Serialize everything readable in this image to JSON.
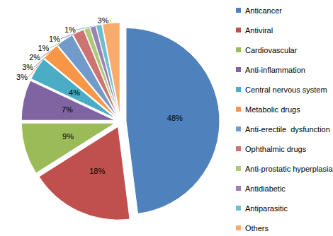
{
  "chart_data": {
    "type": "pie",
    "categories": [
      "Anticancer",
      "Antiviral",
      "Cardiovascular",
      "Anti-inflammation",
      "Central nervous system",
      "Metabolic drugs",
      "Anti-erectile  dysfunction",
      "Ophthalmic drugs",
      "Anti-prostatic hyperplasia",
      "Antidiabetic",
      "Antiparasitic",
      "Others"
    ],
    "values": [
      48,
      18,
      9,
      7,
      4,
      3,
      3,
      2,
      1,
      1,
      1,
      3
    ],
    "value_labels": [
      "48%",
      "18%",
      "9%",
      "7%",
      "4%",
      "3%",
      "3%",
      "2%",
      "1%",
      "1%",
      "1%",
      "3%"
    ],
    "colors": [
      "#4f81bd",
      "#c0504d",
      "#9bbb59",
      "#8064a2",
      "#4bacc6",
      "#f79646",
      "#729aca",
      "#cd7371",
      "#afc97a",
      "#9983b5",
      "#6fbdd1",
      "#f9ab6b"
    ],
    "legend": "right",
    "data_labels": true
  }
}
